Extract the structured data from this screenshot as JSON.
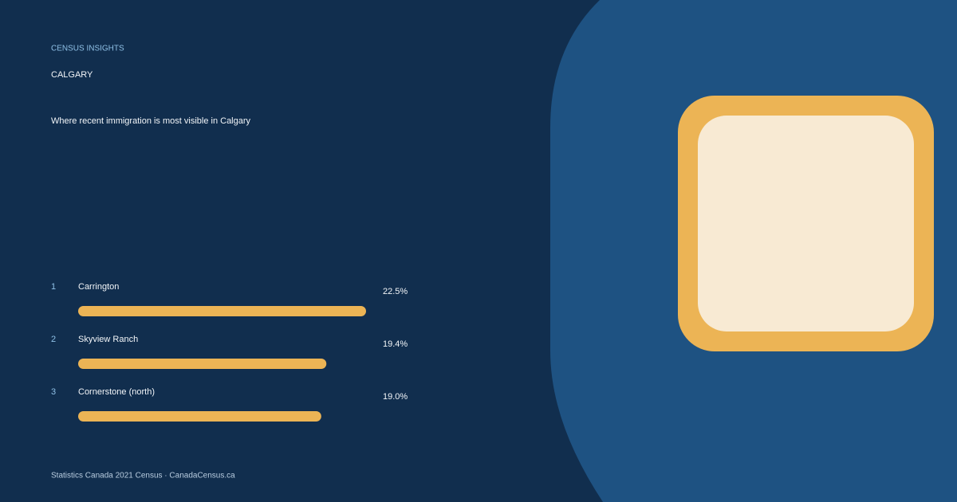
{
  "chart_data": {
    "type": "bar",
    "orientation": "horizontal",
    "eyebrow": "CENSUS INSIGHTS",
    "city": "CALGARY",
    "title": "Where recent immigration is most visible in Calgary",
    "ranks": [
      1,
      2,
      3
    ],
    "categories": [
      "Carrington",
      "Skyview Ranch",
      "Cornerstone (north)"
    ],
    "values": [
      22.5,
      19.4,
      19.0
    ],
    "value_labels": [
      "22.5%",
      "19.4%",
      "19.0%"
    ],
    "color": "#ecb455",
    "footer": "Statistics Canada 2021 Census · CanadaCensus.ca"
  }
}
